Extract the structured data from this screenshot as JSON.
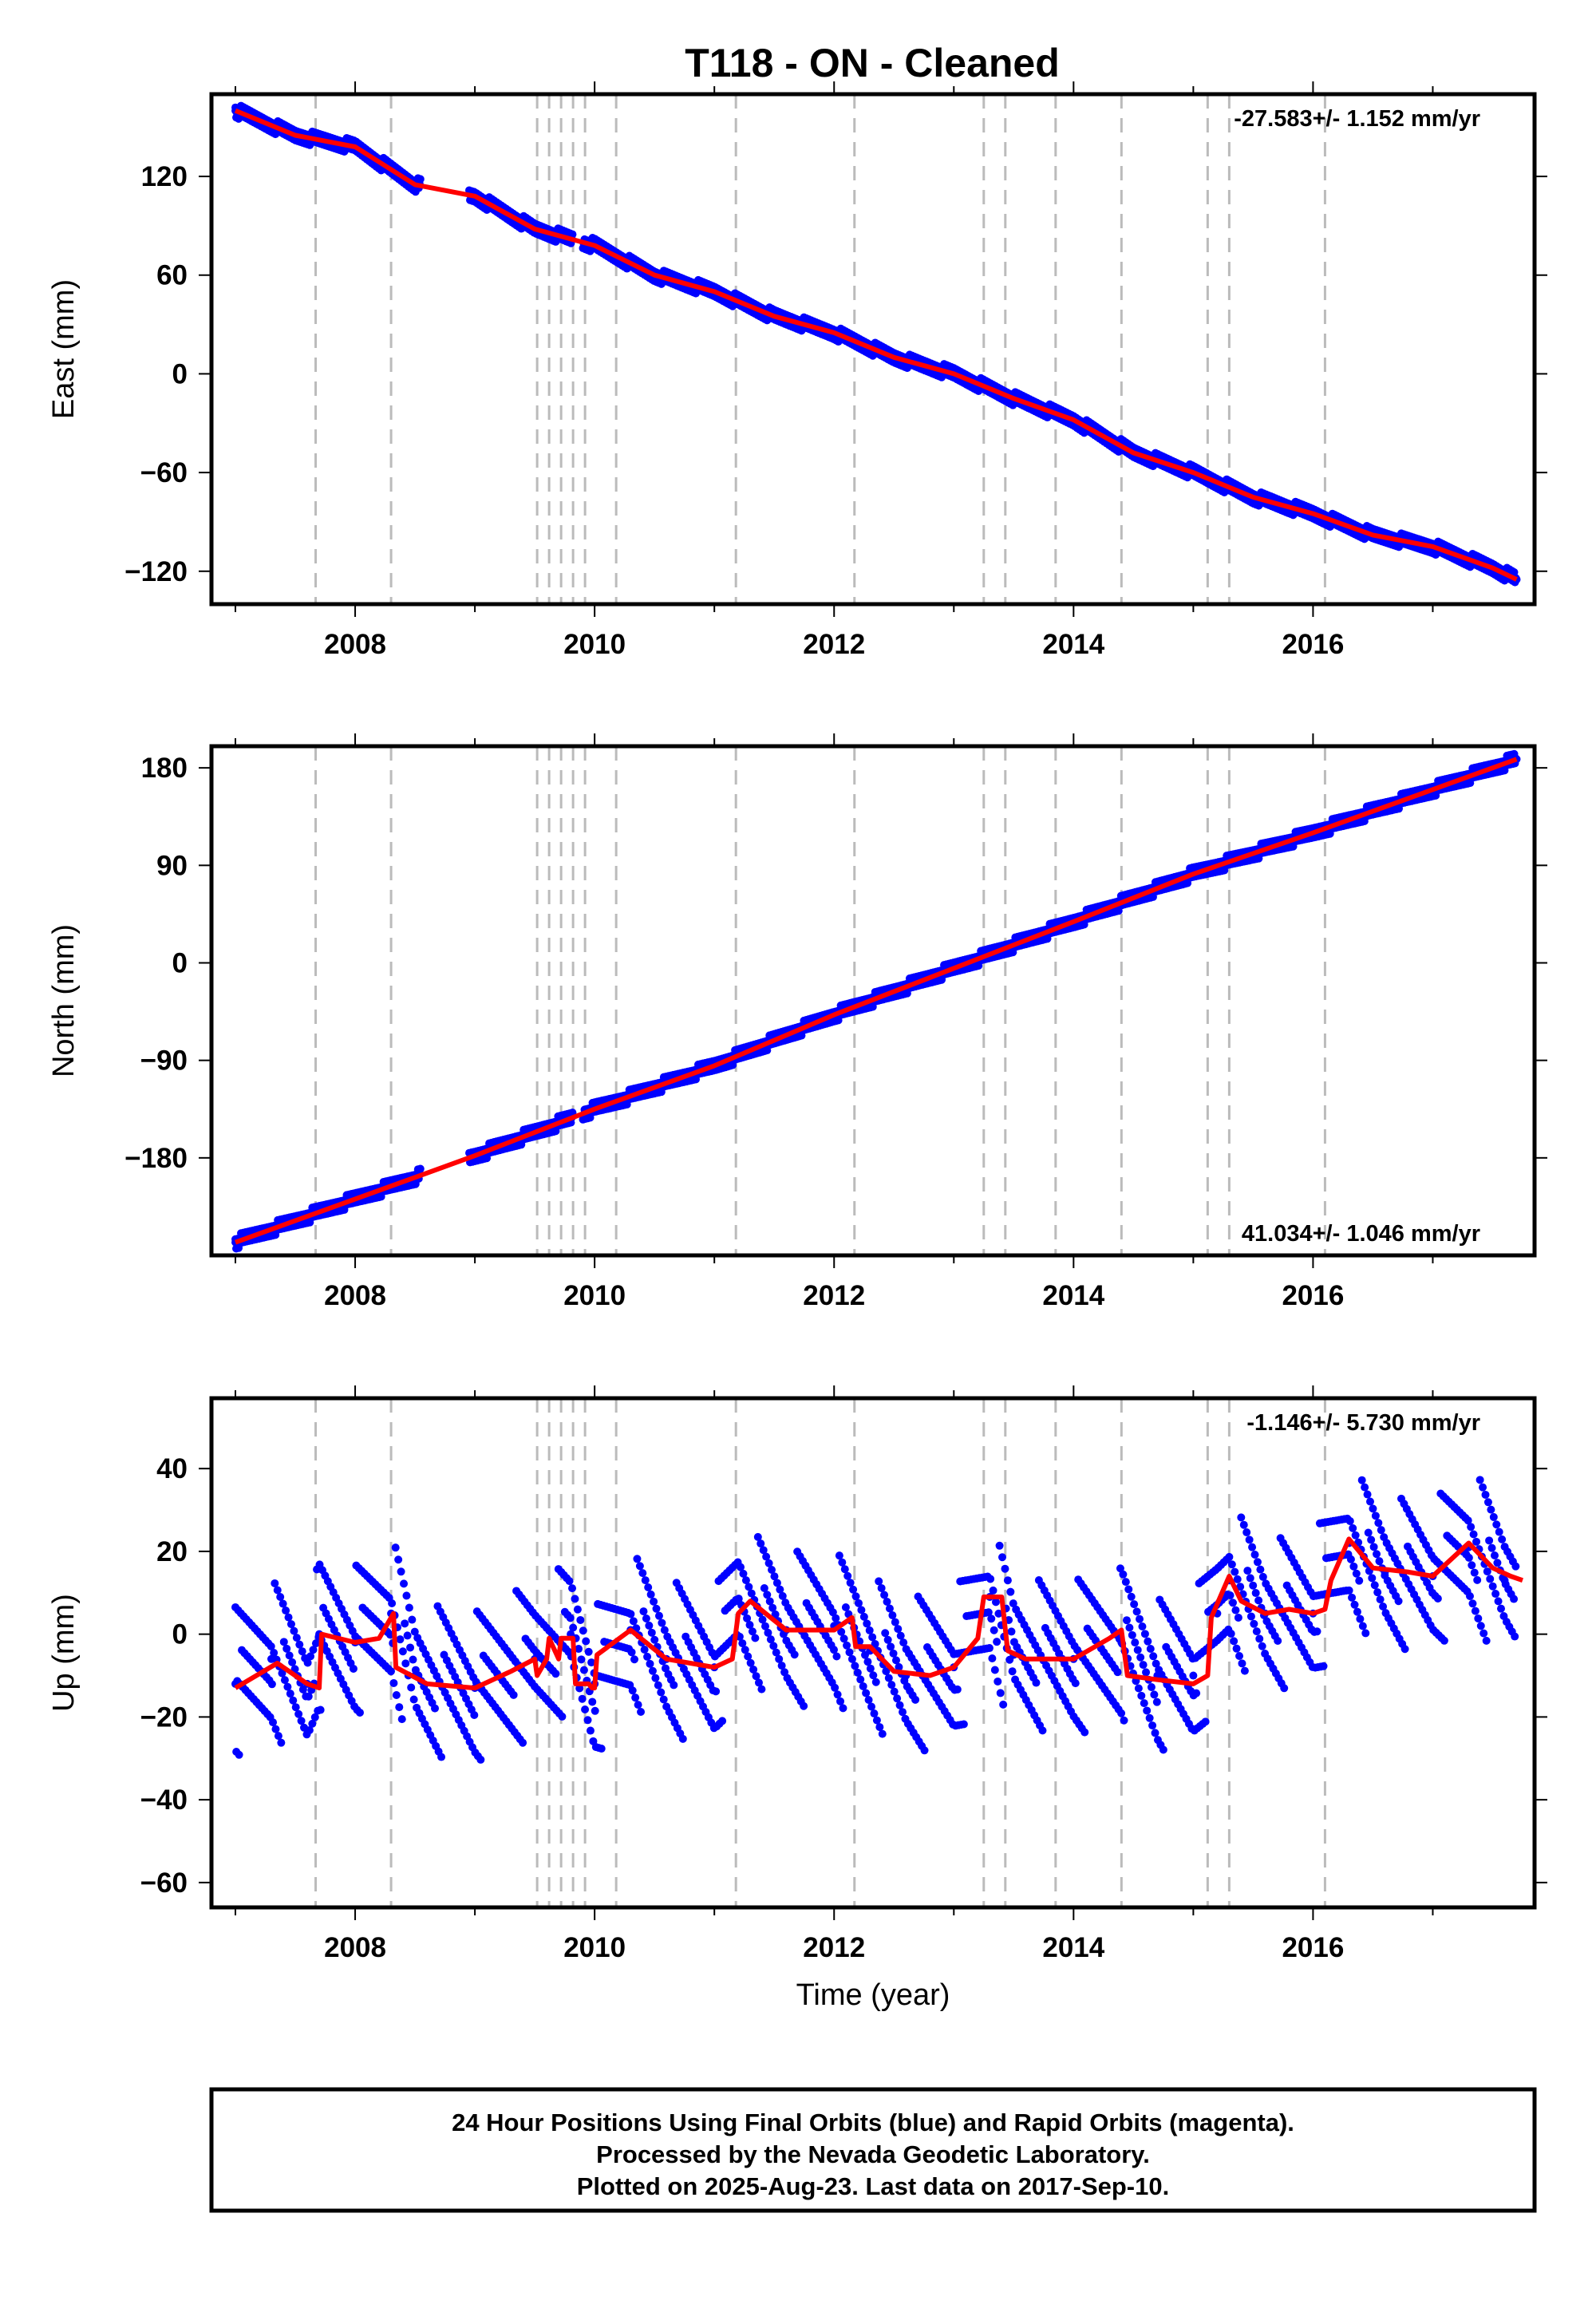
{
  "title": "T118  - ON - Cleaned",
  "footer": {
    "line1": "24 Hour Positions Using Final Orbits (blue) and Rapid Orbits (magenta).",
    "line2": "Processed by the Nevada Geodetic Laboratory.",
    "line3": "Plotted on 2025-Aug-23. Last data on 2017-Sep-10."
  },
  "colors": {
    "data": "#0000ff",
    "model": "#ff0000",
    "steps": "#bbbbbb",
    "frame": "#000000"
  },
  "chart_data": [
    {
      "type": "scatter",
      "name": "east",
      "ylabel": "East (mm)",
      "xlabel": "",
      "xlim": [
        2006.8,
        2017.85
      ],
      "ylim": [
        -140,
        170
      ],
      "xticks": [
        "2008",
        "2010",
        "2012",
        "2014",
        "2016"
      ],
      "yticks": [
        "120",
        "60",
        "0",
        "−60",
        "−120"
      ],
      "rate_label": "-27.583+/- 1.152 mm/yr",
      "rate_position": "top-right",
      "x": [
        2007.0,
        2007.5,
        2008.0,
        2008.5,
        2009.0,
        2009.5,
        2010.0,
        2010.5,
        2011.0,
        2011.5,
        2012.0,
        2012.5,
        2013.0,
        2013.5,
        2014.0,
        2014.5,
        2015.0,
        2015.5,
        2016.0,
        2016.5,
        2017.0,
        2017.5,
        2017.7
      ],
      "y": [
        160,
        145,
        138,
        115,
        108,
        88,
        78,
        60,
        50,
        35,
        25,
        10,
        0,
        -15,
        -28,
        -48,
        -60,
        -75,
        -85,
        -98,
        -105,
        -118,
        -125
      ]
    },
    {
      "type": "scatter",
      "name": "north",
      "ylabel": "North (mm)",
      "xlabel": "",
      "xlim": [
        2006.8,
        2017.85
      ],
      "ylim": [
        -270,
        200
      ],
      "xticks": [
        "2008",
        "2010",
        "2012",
        "2014",
        "2016"
      ],
      "yticks": [
        "180",
        "90",
        "0",
        "−90",
        "−180"
      ],
      "rate_label": "41.034+/- 1.046 mm/yr",
      "rate_position": "bottom-right",
      "x": [
        2007.0,
        2008.0,
        2009.0,
        2010.0,
        2011.0,
        2012.0,
        2013.0,
        2014.0,
        2015.0,
        2016.0,
        2017.0,
        2017.7
      ],
      "y": [
        -258,
        -218,
        -178,
        -135,
        -95,
        -48,
        -5,
        38,
        82,
        120,
        160,
        188
      ]
    },
    {
      "type": "scatter",
      "name": "up",
      "ylabel": "Up (mm)",
      "xlabel": "Time (year)",
      "xlim": [
        2006.8,
        2017.85
      ],
      "ylim": [
        -66,
        57
      ],
      "xticks": [
        "2008",
        "2010",
        "2012",
        "2014",
        "2016"
      ],
      "yticks": [
        "40",
        "20",
        "0",
        "−20",
        "−40",
        "−60"
      ],
      "rate_label": "-1.146+/- 5.730 mm/yr",
      "rate_position": "top-right",
      "x": [
        2007.0,
        2007.3,
        2007.6,
        2007.7,
        2008.0,
        2008.3,
        2008.5,
        2009.0,
        2009.5,
        2009.8,
        2010.0,
        2010.3,
        2010.6,
        2011.0,
        2011.2,
        2011.6,
        2012.0,
        2012.3,
        2012.6,
        2013.0,
        2013.3,
        2013.5,
        2014.0,
        2014.4,
        2014.7,
        2015.0,
        2015.2,
        2015.3,
        2015.6,
        2016.0,
        2016.3,
        2016.6,
        2017.0,
        2017.3,
        2017.6
      ],
      "y": [
        -12,
        -6,
        -12,
        0,
        -2,
        5,
        -10,
        -13,
        -6,
        0,
        -12,
        1,
        -6,
        -8,
        8,
        1,
        2,
        -4,
        -10,
        -8,
        9,
        -5,
        -6,
        -2,
        -10,
        -10,
        5,
        13,
        5,
        5,
        22,
        15,
        14,
        21,
        13
      ],
      "model_x": [
        2007.0,
        2007.35,
        2007.6,
        2007.7,
        2007.72,
        2008.0,
        2008.2,
        2008.32,
        2008.34,
        2008.6,
        2009.0,
        2009.3,
        2009.5,
        2009.52,
        2009.6,
        2009.62,
        2009.7,
        2009.72,
        2009.82,
        2009.84,
        2009.95,
        2009.98,
        2010.0,
        2010.02,
        2010.3,
        2010.6,
        2011.0,
        2011.15,
        2011.2,
        2011.3,
        2011.6,
        2012.0,
        2012.15,
        2012.18,
        2012.3,
        2012.5,
        2012.8,
        2013.0,
        2013.2,
        2013.25,
        2013.4,
        2013.45,
        2013.6,
        2014.0,
        2014.3,
        2014.4,
        2014.45,
        2014.7,
        2015.0,
        2015.12,
        2015.15,
        2015.3,
        2015.4,
        2015.6,
        2015.8,
        2016.0,
        2016.1,
        2016.15,
        2016.3,
        2016.5,
        2016.8,
        2017.0,
        2017.3,
        2017.5,
        2017.65,
        2017.75
      ],
      "model_y": [
        -13,
        -7,
        -12,
        -13,
        0,
        -2,
        -1,
        5,
        -8,
        -12,
        -13,
        -9,
        -6,
        -10,
        -6,
        -1,
        -6,
        -1,
        -1,
        -12,
        -12,
        -13,
        -13,
        -5,
        1,
        -6,
        -8,
        -6,
        5,
        8,
        1,
        1,
        4,
        -3,
        -3,
        -9,
        -10,
        -8,
        -1,
        9,
        9,
        -4,
        -6,
        -6,
        -1,
        1,
        -10,
        -11,
        -12,
        -10,
        4,
        14,
        8,
        5,
        6,
        5,
        6,
        13,
        23,
        16,
        15,
        14,
        22,
        16,
        14,
        13
      ]
    }
  ]
}
